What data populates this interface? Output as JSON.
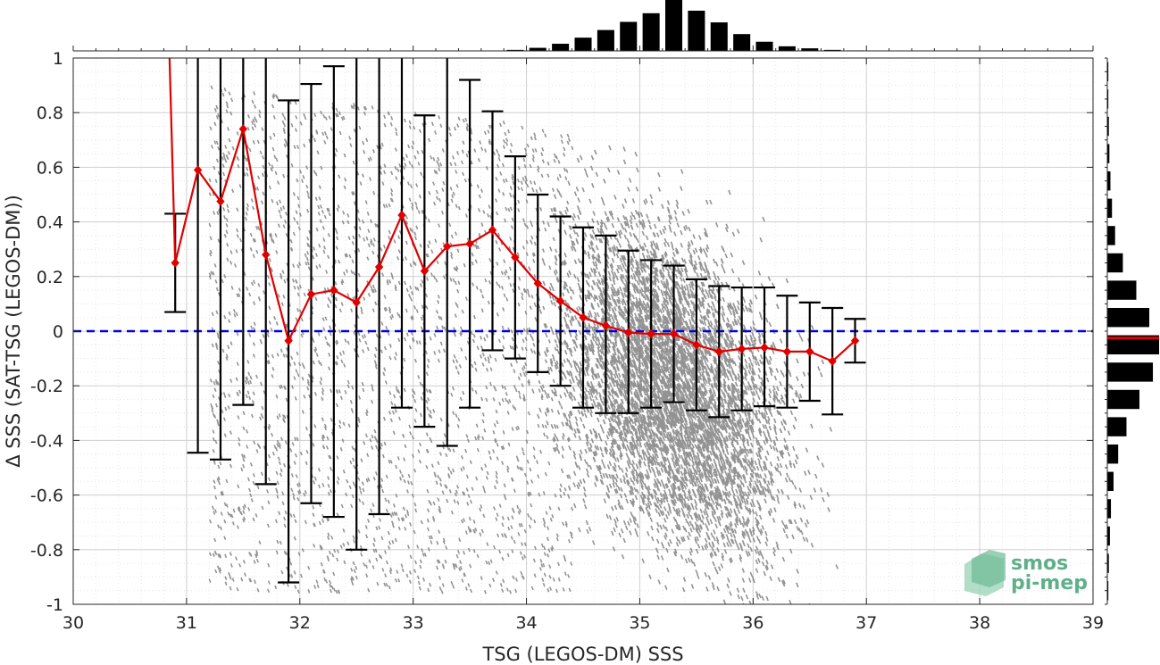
{
  "chart_data": {
    "type": "scatter",
    "xlabel": "TSG (LEGOS-DM) SSS",
    "ylabel": "Δ SSS (SAT-TSG (LEGOS-DM))",
    "xlim": [
      30,
      39
    ],
    "ylim": [
      -1,
      1
    ],
    "x_ticks": [
      "30",
      "31",
      "32",
      "33",
      "34",
      "35",
      "36",
      "37",
      "38",
      "39"
    ],
    "y_ticks": [
      "-1",
      "-0.8",
      "-0.6",
      "-0.4",
      "-0.2",
      "0",
      "0.2",
      "0.4",
      "0.6",
      "0.8",
      "1"
    ],
    "grid": true,
    "legend": "none",
    "reference_line": {
      "y": 0,
      "style": "dashed",
      "color": "#0000dd"
    },
    "scatter_cloud": {
      "color": "#808080",
      "center_x": 35.3,
      "center_y": -0.2,
      "spread_x": 0.65,
      "spread_y": 0.35
    },
    "series": [
      {
        "type": "line_with_errorbars",
        "color": "#e00000",
        "x": [
          30.9,
          31.1,
          31.3,
          31.5,
          31.7,
          31.9,
          32.1,
          32.3,
          32.5,
          32.7,
          32.9,
          33.1,
          33.3,
          33.5,
          33.7,
          33.9,
          34.1,
          34.3,
          34.5,
          34.7,
          34.9,
          35.1,
          35.3,
          35.5,
          35.7,
          35.9,
          36.1,
          36.3,
          36.5,
          36.7,
          36.9
        ],
        "y": [
          0.25,
          0.59,
          0.475,
          0.74,
          0.28,
          -0.035,
          0.135,
          0.15,
          0.105,
          0.235,
          0.425,
          0.22,
          0.31,
          0.32,
          0.37,
          0.27,
          0.175,
          0.11,
          0.05,
          0.02,
          -0.005,
          -0.01,
          -0.01,
          -0.05,
          -0.075,
          -0.065,
          -0.06,
          -0.075,
          -0.075,
          -0.11,
          -0.035
        ],
        "err_low": [
          0.07,
          -0.445,
          -0.47,
          -0.27,
          -0.56,
          -0.92,
          -0.63,
          -0.68,
          -0.8,
          -0.67,
          -0.28,
          -0.35,
          -0.42,
          -0.28,
          -0.07,
          -0.1,
          -0.15,
          -0.2,
          -0.28,
          -0.3,
          -0.3,
          -0.28,
          -0.26,
          -0.29,
          -0.315,
          -0.29,
          -0.275,
          -0.28,
          -0.255,
          -0.305,
          -0.115
        ],
        "err_high": [
          0.43,
          1.02,
          1.02,
          1.02,
          1.02,
          0.845,
          0.905,
          0.97,
          1.02,
          1.02,
          1.02,
          0.79,
          1.02,
          0.92,
          0.805,
          0.64,
          0.5,
          0.42,
          0.38,
          0.35,
          0.295,
          0.26,
          0.24,
          0.19,
          0.165,
          0.16,
          0.16,
          0.13,
          0.105,
          0.085,
          0.045
        ],
        "pre_segment": {
          "x": [
            30.85,
            30.9
          ],
          "y": [
            1.0,
            0.25
          ]
        }
      }
    ],
    "top_histogram": {
      "bin_centers": [
        33.9,
        34.1,
        34.3,
        34.5,
        34.7,
        34.9,
        35.1,
        35.3,
        35.5,
        35.7,
        35.9,
        36.1,
        36.3,
        36.5,
        36.7,
        36.9
      ],
      "relative_counts": [
        0.02,
        0.06,
        0.14,
        0.26,
        0.41,
        0.57,
        0.74,
        1.0,
        0.79,
        0.56,
        0.33,
        0.18,
        0.09,
        0.05,
        0.02,
        0.01
      ]
    },
    "right_histogram": {
      "bin_centers": [
        0.95,
        0.85,
        0.75,
        0.65,
        0.55,
        0.45,
        0.35,
        0.25,
        0.15,
        0.05,
        -0.05,
        -0.15,
        -0.25,
        -0.35,
        -0.45,
        -0.55,
        -0.65,
        -0.75,
        -0.85,
        -0.95
      ],
      "relative_counts": [
        0.02,
        0.02,
        0.03,
        0.04,
        0.06,
        0.09,
        0.15,
        0.3,
        0.56,
        0.81,
        1.0,
        0.88,
        0.62,
        0.37,
        0.21,
        0.12,
        0.07,
        0.05,
        0.03,
        0.02
      ],
      "median_line": {
        "y": -0.025,
        "color": "#e00000"
      }
    }
  },
  "logo": {
    "line1": "smos",
    "line2": "pi-mep",
    "color": "#5fb08a"
  }
}
